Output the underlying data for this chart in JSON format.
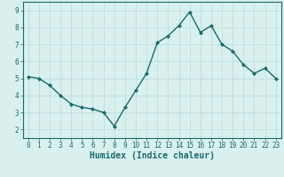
{
  "x": [
    0,
    1,
    2,
    3,
    4,
    5,
    6,
    7,
    8,
    9,
    10,
    11,
    12,
    13,
    14,
    15,
    16,
    17,
    18,
    19,
    20,
    21,
    22,
    23
  ],
  "y": [
    5.1,
    5.0,
    4.6,
    4.0,
    3.5,
    3.3,
    3.2,
    3.0,
    2.2,
    3.3,
    4.3,
    5.3,
    7.1,
    7.5,
    8.1,
    8.9,
    7.7,
    8.1,
    7.0,
    6.6,
    5.8,
    5.3,
    5.6,
    5.0
  ],
  "line_color": "#1a6b6b",
  "marker": "D",
  "marker_size": 2.0,
  "xlabel": "Humidex (Indice chaleur)",
  "xlabel_fontsize": 7,
  "xlabel_weight": "bold",
  "xlim": [
    -0.5,
    23.5
  ],
  "ylim": [
    1.5,
    9.5
  ],
  "yticks": [
    2,
    3,
    4,
    5,
    6,
    7,
    8,
    9
  ],
  "xticks": [
    0,
    1,
    2,
    3,
    4,
    5,
    6,
    7,
    8,
    9,
    10,
    11,
    12,
    13,
    14,
    15,
    16,
    17,
    18,
    19,
    20,
    21,
    22,
    23
  ],
  "background_color": "#d8f0ee",
  "grid_color": "#c0dede",
  "tick_fontsize": 5.5,
  "linewidth": 1.0
}
